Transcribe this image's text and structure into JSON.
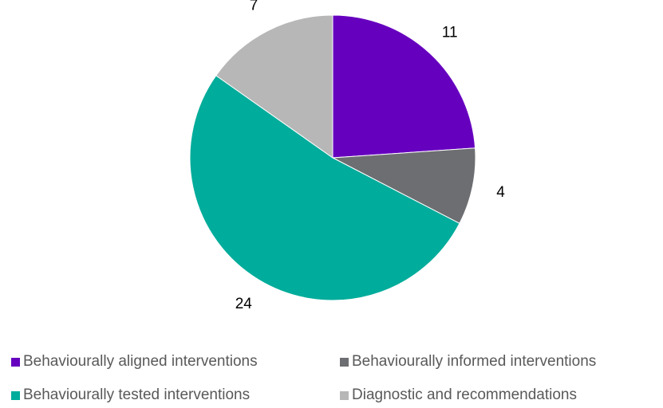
{
  "chart_data": {
    "type": "pie",
    "title": "",
    "slices": [
      {
        "label": "Behaviourally aligned interventions",
        "value": 11,
        "color": "#6600BF"
      },
      {
        "label": "Behaviourally informed interventions",
        "value": 4,
        "color": "#6D6E71"
      },
      {
        "label": "Behaviourally tested interventions",
        "value": 24,
        "color": "#00AC9B"
      },
      {
        "label": "Diagnostic and recommendations",
        "value": 7,
        "color": "#B6B7B6"
      }
    ],
    "start_angle": "12 o'clock",
    "direction": "clockwise",
    "data_labels": "outside",
    "legend_position": "bottom"
  }
}
